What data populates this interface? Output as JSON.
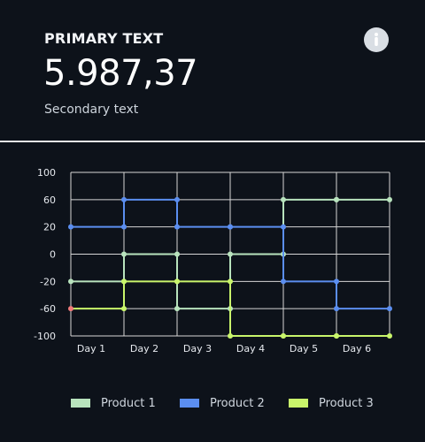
{
  "header": {
    "primary_label": "PRIMARY TEXT",
    "value": "5.987,37",
    "secondary": "Secondary text",
    "info_icon": "info-icon"
  },
  "colors": {
    "background": "#0d121a",
    "grid": "#d6d6d6",
    "product1": "#b8e3bd",
    "product2": "#5b8ef0",
    "product3": "#c9f56b",
    "highlight": "#f07a7a"
  },
  "chart_data": {
    "type": "line",
    "step": true,
    "categories": [
      "Day 1",
      "Day 2",
      "Day 3",
      "Day 4",
      "Day 5",
      "Day 6"
    ],
    "ytick_labels": [
      "100",
      "60",
      "20",
      "0",
      "-20",
      "-60",
      "-100"
    ],
    "series": [
      {
        "name": "Product 1",
        "values": [
          -20,
          0,
          -60,
          0,
          60,
          60
        ]
      },
      {
        "name": "Product 2",
        "values": [
          20,
          60,
          20,
          20,
          -20,
          -60
        ]
      },
      {
        "name": "Product 3",
        "values": [
          -60,
          -20,
          -20,
          -100,
          -100,
          -100
        ]
      }
    ],
    "grid": true,
    "legend": "bottom"
  },
  "legend": [
    {
      "label": "Product 1",
      "color": "#b8e3bd"
    },
    {
      "label": "Product 2",
      "color": "#5b8ef0"
    },
    {
      "label": "Product 3",
      "color": "#c9f56b"
    }
  ]
}
